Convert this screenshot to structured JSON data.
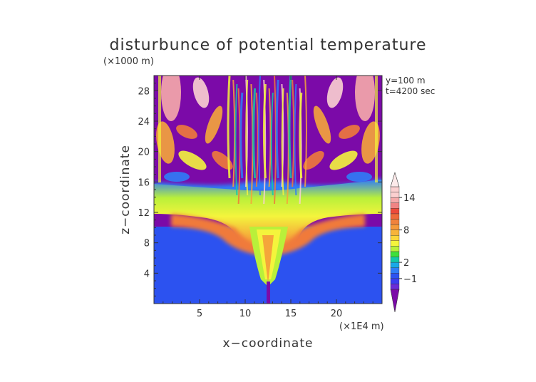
{
  "chart_data": {
    "type": "heatmap",
    "title": "disturbunce of potential temperature",
    "xlabel": "x−coordinate",
    "ylabel": "z−coordinate",
    "x_unit": "(×1E4 m)",
    "y_unit": "(×1000 m)",
    "annotations": [
      "y=100 m",
      "t=4200 sec"
    ],
    "x_ticks": [
      5,
      10,
      15,
      20
    ],
    "y_ticks": [
      4,
      8,
      12,
      16,
      20,
      24,
      28
    ],
    "xlim": [
      0,
      25
    ],
    "ylim": [
      0,
      30
    ],
    "colorbar": {
      "labels": [
        {
          "value": -1,
          "text": "−1"
        },
        {
          "value": 2,
          "text": "2"
        },
        {
          "value": 8,
          "text": "8"
        },
        {
          "value": 14,
          "text": "14"
        }
      ],
      "levels": [
        -3,
        -2,
        -1,
        0,
        1,
        2,
        3,
        4,
        5,
        6,
        7,
        8,
        9,
        10,
        11,
        12,
        13,
        14,
        15,
        16
      ],
      "colors": [
        "#7b0aa8",
        "#6a2ad8",
        "#3b3bf0",
        "#2c52f0",
        "#2f7df7",
        "#1aa8e8",
        "#13c8a8",
        "#3ee03a",
        "#b9f03a",
        "#f4f43c",
        "#fbd63a",
        "#f7b43a",
        "#f59a3a",
        "#f0823c",
        "#ef6a3a",
        "#ec4a3a",
        "#f08484",
        "#f6aaaa",
        "#fbd0d0"
      ]
    }
  }
}
